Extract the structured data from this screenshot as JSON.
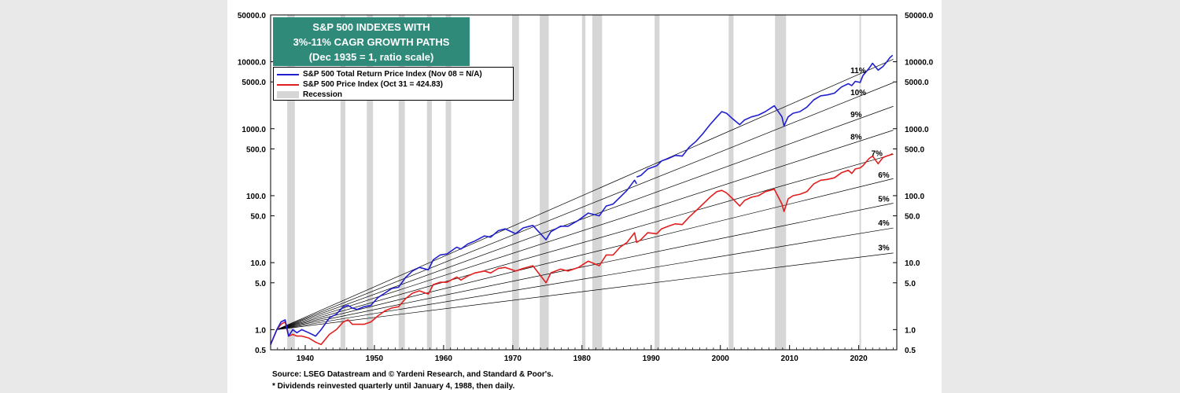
{
  "colors": {
    "total_return": "#1f1fcf",
    "price_index": "#e31e1e",
    "recession": "#d6d6d6",
    "title_box_bg": "#2f8a7a",
    "page_bg": "#e9e9e9"
  },
  "chart_data": {
    "type": "line",
    "title_lines": [
      "S&P 500 INDEXES WITH",
      "3%-11% CAGR GROWTH PATHS",
      "(Dec 1935 = 1, ratio scale)"
    ],
    "y_scale": "log",
    "ylim": [
      0.5,
      50000
    ],
    "xlim": [
      1935,
      2025.5
    ],
    "x_ticks": [
      1940,
      1950,
      1960,
      1970,
      1980,
      1990,
      2000,
      2010,
      2020
    ],
    "y_ticks": [
      {
        "v": 50000,
        "label": "50000.0"
      },
      {
        "v": 10000,
        "label": "10000.0"
      },
      {
        "v": 5000,
        "label": "5000.0"
      },
      {
        "v": 1000,
        "label": "1000.0"
      },
      {
        "v": 500,
        "label": "500.0"
      },
      {
        "v": 100,
        "label": "100.0"
      },
      {
        "v": 50,
        "label": "50.0"
      },
      {
        "v": 10,
        "label": "10.0"
      },
      {
        "v": 5,
        "label": "5.0"
      },
      {
        "v": 1,
        "label": "1.0"
      },
      {
        "v": 0.5,
        "label": "0.5"
      }
    ],
    "grid": false,
    "legend": {
      "position": "top-left",
      "entries": [
        {
          "key": "total_return",
          "label": "S&P 500 Total Return Price Index (Nov 08 = N/A)"
        },
        {
          "key": "price_index",
          "label": "S&P 500 Price Index (Oct 31 = 424.83)"
        },
        {
          "key": "recession",
          "label": "Recession"
        }
      ]
    },
    "recessions": [
      [
        1937.4,
        1938.5
      ],
      [
        1945.1,
        1945.8
      ],
      [
        1948.9,
        1949.8
      ],
      [
        1953.5,
        1954.4
      ],
      [
        1957.6,
        1958.3
      ],
      [
        1960.3,
        1961.1
      ],
      [
        1969.9,
        1970.9
      ],
      [
        1973.9,
        1975.2
      ],
      [
        1980.0,
        1980.5
      ],
      [
        1981.5,
        1982.9
      ],
      [
        1990.5,
        1991.2
      ],
      [
        2001.2,
        2001.9
      ],
      [
        2007.9,
        2009.5
      ],
      [
        2020.1,
        2020.3
      ]
    ],
    "cagr_paths": {
      "base_year": 1935.9,
      "base_value": 1,
      "end_year": 2025,
      "rates": [
        {
          "rate": 0.03,
          "label": "3%",
          "label_x": 2022.8
        },
        {
          "rate": 0.04,
          "label": "4%",
          "label_x": 2022.8
        },
        {
          "rate": 0.05,
          "label": "5%",
          "label_x": 2022.8
        },
        {
          "rate": 0.06,
          "label": "6%",
          "label_x": 2022.8
        },
        {
          "rate": 0.07,
          "label": "7%",
          "label_x": 2021.8
        },
        {
          "rate": 0.08,
          "label": "8%",
          "label_x": 2018.8
        },
        {
          "rate": 0.09,
          "label": "9%",
          "label_x": 2018.8
        },
        {
          "rate": 0.1,
          "label": "10%",
          "label_x": 2018.8
        },
        {
          "rate": 0.11,
          "label": "11%",
          "label_x": 2018.8
        }
      ]
    },
    "series": [
      {
        "name": "S&P 500 Total Return Price Index (Nov 08 = N/A)",
        "key": "total_return",
        "x": [
          1935.0,
          1935.9,
          1936.5,
          1937.1,
          1937.6,
          1938.2,
          1938.8,
          1939.5,
          1940.5,
          1941.5,
          1942.3,
          1943.5,
          1944.5,
          1945.5,
          1946.2,
          1946.8,
          1947.5,
          1948.5,
          1949.5,
          1950.5,
          1951.5,
          1952.5,
          1953.5,
          1954.5,
          1955.5,
          1956.5,
          1957.8,
          1958.5,
          1959.5,
          1960.5,
          1961.9,
          1962.5,
          1963.5,
          1964.5,
          1965.9,
          1966.8,
          1967.9,
          1968.9,
          1970.4,
          1971.5,
          1972.9,
          1974.8,
          1975.5,
          1976.9,
          1978.0,
          1979.5,
          1980.9,
          1982.5,
          1983.5,
          1984.5,
          1985.5,
          1986.5,
          1987.6,
          1987.9,
          null,
          1987.9,
          1988.5,
          1989.5,
          1990.8,
          1991.5,
          1992.5,
          1993.5,
          1994.5,
          1995.5,
          1996.5,
          1997.5,
          1998.5,
          1999.5,
          2000.2,
          2000.9,
          2001.8,
          2002.8,
          2003.5,
          2004.5,
          2005.5,
          2006.5,
          2007.8,
          2008.9,
          2009.2,
          2009.8,
          2010.5,
          2011.5,
          2012.5,
          2013.5,
          2014.5,
          2015.5,
          2016.5,
          2017.5,
          2018.5,
          2019.0,
          2019.5,
          2020.2,
          2020.6,
          2021.5,
          2022.0,
          2022.8,
          2023.5,
          2024.0,
          2024.5,
          2024.9
        ],
        "values": [
          0.6,
          1.0,
          1.3,
          1.4,
          0.8,
          1.0,
          0.9,
          1.0,
          0.9,
          0.8,
          1.0,
          1.5,
          1.7,
          2.2,
          2.3,
          2.1,
          2.0,
          2.2,
          2.3,
          3.0,
          3.5,
          4.1,
          4.3,
          6.0,
          7.5,
          8.5,
          7.8,
          11.0,
          13.0,
          13.5,
          17.0,
          16.0,
          19.0,
          21.0,
          25.0,
          24.0,
          30.0,
          32.0,
          27.0,
          33.0,
          36.0,
          22.0,
          29.0,
          35.0,
          35.0,
          43.0,
          55.0,
          50.0,
          70.0,
          75.0,
          95.0,
          120.0,
          170.0,
          150.0,
          null,
          190.0,
          200.0,
          250.0,
          280.0,
          330.0,
          360.0,
          400.0,
          390.0,
          530.0,
          650.0,
          850.0,
          1150.0,
          1500.0,
          1800.0,
          1700.0,
          1400.0,
          1150.0,
          1350.0,
          1500.0,
          1600.0,
          1800.0,
          2200.0,
          1500.0,
          1100.0,
          1500.0,
          1700.0,
          1800.0,
          2100.0,
          2700.0,
          3100.0,
          3200.0,
          3400.0,
          4200.0,
          4700.0,
          4400.0,
          5100.0,
          4900.0,
          6200.0,
          8000.0,
          9500.0,
          7500.0,
          8500.0,
          9800.0,
          11500.0,
          12500.0
        ]
      },
      {
        "name": "S&P 500 Price Index (Oct 31 = 424.83)",
        "key": "price_index",
        "x": [
          1935.0,
          1935.9,
          1936.5,
          1937.1,
          1937.6,
          1938.2,
          1938.8,
          1939.5,
          1940.5,
          1941.5,
          1942.3,
          1943.5,
          1944.5,
          1945.5,
          1946.2,
          1946.8,
          1947.5,
          1948.5,
          1949.5,
          1950.5,
          1951.5,
          1952.5,
          1953.5,
          1954.5,
          1955.5,
          1956.5,
          1957.8,
          1958.5,
          1959.5,
          1960.5,
          1961.9,
          1962.5,
          1963.5,
          1964.5,
          1965.9,
          1966.8,
          1967.9,
          1968.9,
          1970.4,
          1971.5,
          1972.9,
          1974.8,
          1975.5,
          1976.9,
          1978.0,
          1979.5,
          1980.9,
          1982.5,
          1983.5,
          1984.5,
          1985.5,
          1986.5,
          1987.6,
          1987.9,
          1988.5,
          1989.5,
          1990.8,
          1991.5,
          1992.5,
          1993.5,
          1994.5,
          1995.5,
          1996.5,
          1997.5,
          1998.5,
          1999.5,
          2000.2,
          2000.9,
          2001.8,
          2002.8,
          2003.5,
          2004.5,
          2005.5,
          2006.5,
          2007.8,
          2008.9,
          2009.2,
          2009.8,
          2010.5,
          2011.5,
          2012.5,
          2013.5,
          2014.5,
          2015.5,
          2016.5,
          2017.5,
          2018.5,
          2019.0,
          2019.5,
          2020.2,
          2020.6,
          2021.5,
          2022.0,
          2022.8,
          2023.5,
          2024.0,
          2024.5,
          2024.9
        ],
        "values": [
          0.6,
          1.0,
          1.2,
          1.3,
          0.8,
          0.85,
          0.8,
          0.8,
          0.75,
          0.65,
          0.6,
          0.85,
          1.0,
          1.3,
          1.4,
          1.2,
          1.2,
          1.2,
          1.3,
          1.6,
          1.9,
          2.1,
          2.2,
          2.9,
          3.5,
          3.8,
          3.4,
          4.7,
          5.1,
          5.1,
          6.1,
          5.5,
          6.3,
          7.0,
          7.5,
          7.0,
          8.2,
          8.5,
          7.5,
          8.2,
          9.0,
          5.0,
          7.0,
          8.0,
          7.5,
          8.5,
          10.5,
          9.0,
          13.0,
          13.0,
          17.0,
          20.0,
          28.0,
          20.0,
          22.0,
          28.0,
          27.0,
          32.0,
          35.0,
          38.0,
          37.0,
          48.0,
          60.0,
          75.0,
          95.0,
          115.0,
          120.0,
          110.0,
          90.0,
          70.0,
          85.0,
          95.0,
          100.0,
          115.0,
          125.0,
          75.0,
          58.0,
          90.0,
          100.0,
          105.0,
          115.0,
          150.0,
          170.0,
          175.0,
          185.0,
          220.0,
          240.0,
          215.0,
          250.0,
          260.0,
          280.0,
          360.0,
          390.0,
          300.0,
          370.0,
          390.0,
          405.0,
          425.0
        ]
      }
    ],
    "source_lines": [
      "Source: LSEG Datastream and © Yardeni Research, and Standard & Poor's.",
      "* Dividends reinvested quarterly until January 4, 1988, then daily."
    ]
  }
}
